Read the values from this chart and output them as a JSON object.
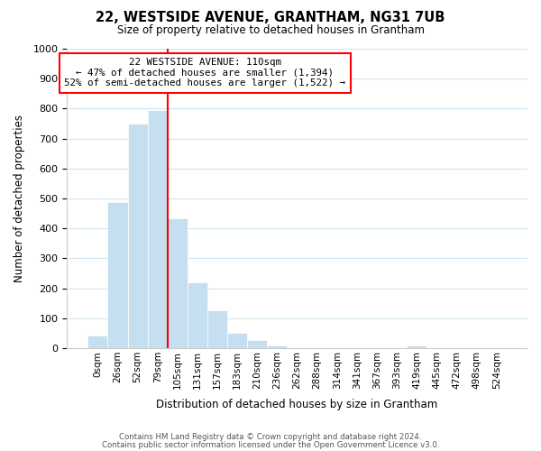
{
  "title": "22, WESTSIDE AVENUE, GRANTHAM, NG31 7UB",
  "subtitle": "Size of property relative to detached houses in Grantham",
  "xlabel": "Distribution of detached houses by size in Grantham",
  "ylabel": "Number of detached properties",
  "bin_labels": [
    "0sqm",
    "26sqm",
    "52sqm",
    "79sqm",
    "105sqm",
    "131sqm",
    "157sqm",
    "183sqm",
    "210sqm",
    "236sqm",
    "262sqm",
    "288sqm",
    "314sqm",
    "341sqm",
    "367sqm",
    "393sqm",
    "419sqm",
    "445sqm",
    "472sqm",
    "498sqm",
    "524sqm"
  ],
  "bar_values": [
    43,
    487,
    750,
    795,
    435,
    220,
    125,
    52,
    28,
    10,
    0,
    0,
    0,
    0,
    0,
    0,
    8,
    0,
    0,
    0,
    0
  ],
  "bar_color": "#c5dff0",
  "vline_color": "red",
  "vline_x": 3.5,
  "ylim": [
    0,
    1000
  ],
  "yticks": [
    0,
    100,
    200,
    300,
    400,
    500,
    600,
    700,
    800,
    900,
    1000
  ],
  "annotation_title": "22 WESTSIDE AVENUE: 110sqm",
  "annotation_line1": "← 47% of detached houses are smaller (1,394)",
  "annotation_line2": "52% of semi-detached houses are larger (1,522) →",
  "annotation_box_color": "#ffffff",
  "annotation_box_edge": "red",
  "footer_line1": "Contains HM Land Registry data © Crown copyright and database right 2024.",
  "footer_line2": "Contains public sector information licensed under the Open Government Licence v3.0.",
  "background_color": "#ffffff",
  "grid_color": "#d0e4f0"
}
